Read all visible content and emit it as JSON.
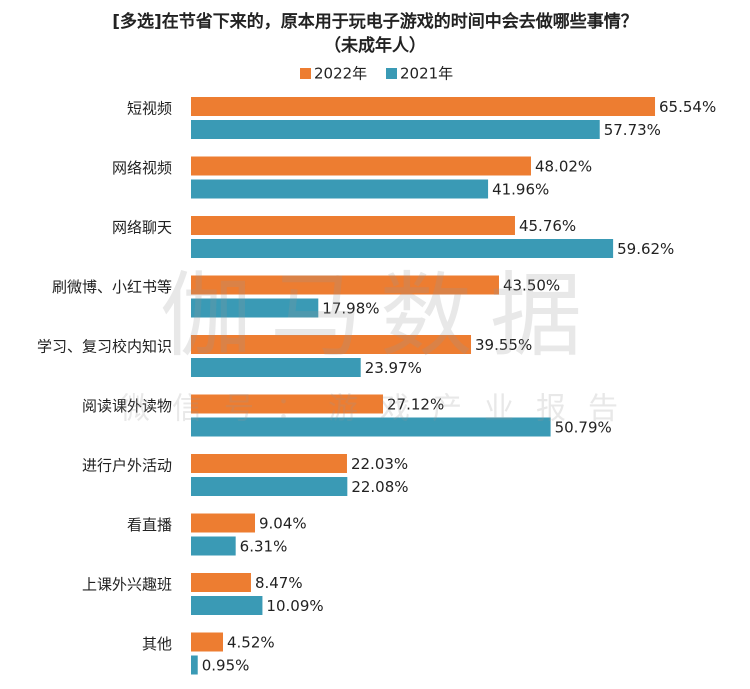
{
  "chart_data": {
    "type": "hbar",
    "title": "[多选]在节省下来的，原本用于玩电子游戏的时间中会去做哪些事情？",
    "subtitle": "（未成年人）",
    "watermark": "伽马数据",
    "watermark_sub": "微信号：游戏产业报告",
    "categories": [
      "短视频",
      "网络视频",
      "网络聊天",
      "刷微博、小红书等",
      "学习、复习校内知识",
      "阅读课外读物",
      "进行户外活动",
      "看直播",
      "上课外兴趣班",
      "其他"
    ],
    "series": [
      {
        "name": "2022年",
        "color": "#ed7d31",
        "values": [
          65.54,
          48.02,
          45.76,
          43.5,
          39.55,
          27.12,
          22.03,
          9.04,
          8.47,
          4.52
        ],
        "value_labels": [
          "65.54%",
          "48.02%",
          "45.76%",
          "43.50%",
          "39.55%",
          "27.12%",
          "22.03%",
          "9.04%",
          "8.47%",
          "4.52%"
        ]
      },
      {
        "name": "2021年",
        "color": "#3a9ab5",
        "values": [
          57.73,
          41.96,
          59.62,
          17.98,
          23.97,
          50.79,
          22.08,
          6.31,
          10.09,
          0.95
        ],
        "value_labels": [
          "57.73%",
          "41.96%",
          "59.62%",
          "17.98%",
          "23.97%",
          "50.79%",
          "22.08%",
          "6.31%",
          "10.09%",
          "0.95%"
        ]
      }
    ],
    "xlim": [
      0,
      75
    ],
    "legend": "top"
  }
}
